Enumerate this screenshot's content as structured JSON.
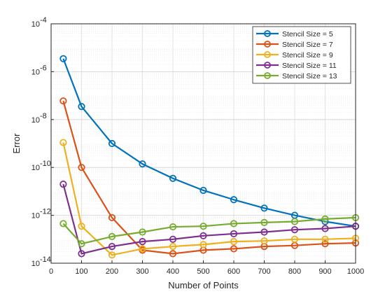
{
  "chart_data": {
    "type": "line",
    "title": "",
    "xlabel": "Number of Points",
    "ylabel": "Error",
    "xlim": [
      0,
      1000
    ],
    "ylim": [
      1e-14,
      0.0001
    ],
    "yscale": "log",
    "grid": true,
    "minor_grid": true,
    "legend_position": "top-right",
    "x": [
      40,
      100,
      200,
      300,
      400,
      500,
      600,
      700,
      800,
      900,
      1000
    ],
    "x_ticks": [
      "0",
      "100",
      "200",
      "300",
      "400",
      "500",
      "600",
      "700",
      "800",
      "900",
      "1000"
    ],
    "y_tick_exponents": [
      "-14",
      "-12",
      "-10",
      "-8",
      "-6",
      "-4"
    ],
    "y_tick_base": "10",
    "series": [
      {
        "name": "Stencil Size = 5",
        "color": "#0072BD",
        "values": [
          3.5e-06,
          3.5e-08,
          1e-09,
          1.4e-10,
          3.5e-11,
          1.1e-11,
          4.5e-12,
          2e-12,
          1e-12,
          5.5e-13,
          3.5e-13
        ]
      },
      {
        "name": "Stencil Size = 7",
        "color": "#D95319",
        "values": [
          6e-08,
          1e-10,
          8e-13,
          3.5e-14,
          2.5e-14,
          3.5e-14,
          4e-14,
          5e-14,
          5.5e-14,
          6.5e-14,
          7e-14
        ]
      },
      {
        "name": "Stencil Size = 9",
        "color": "#EDB120",
        "values": [
          1.1e-09,
          3.5e-13,
          2.2e-14,
          4e-14,
          5e-14,
          6e-14,
          8e-14,
          8.5e-14,
          1e-13,
          1e-13,
          1.1e-13
        ]
      },
      {
        "name": "Stencil Size = 11",
        "color": "#7E2F8E",
        "values": [
          2e-11,
          2.5e-14,
          5e-14,
          8e-14,
          1e-13,
          1.4e-13,
          1.7e-13,
          2e-13,
          2.5e-13,
          2.8e-13,
          3.5e-13
        ]
      },
      {
        "name": "Stencil Size = 13",
        "color": "#77AC30",
        "values": [
          4.5e-13,
          6.5e-14,
          1.3e-13,
          2e-13,
          3.3e-13,
          3.5e-13,
          4.5e-13,
          5e-13,
          5.5e-13,
          7e-13,
          8e-13
        ]
      }
    ]
  }
}
